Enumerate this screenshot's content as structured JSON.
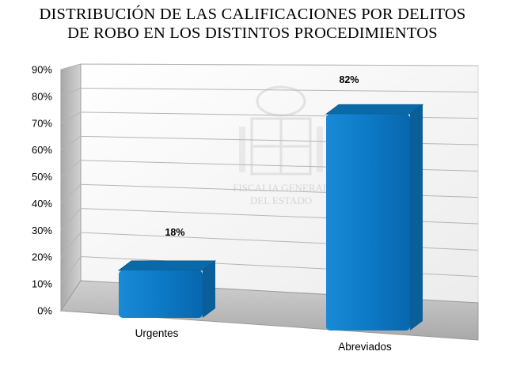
{
  "chart_data": {
    "type": "bar",
    "title_lines": [
      "DISTRIBUCIÓN DE LAS CALIFICACIONES POR DELITOS",
      "DE ROBO EN  LOS DISTINTOS PROCEDIMIENTOS"
    ],
    "categories": [
      "Urgentes",
      "Abreviados"
    ],
    "values": [
      18,
      82
    ],
    "value_labels": [
      "18%",
      "82%"
    ],
    "y_ticks": [
      "0%",
      "10%",
      "20%",
      "30%",
      "40%",
      "50%",
      "60%",
      "70%",
      "80%",
      "90%"
    ],
    "ylim": [
      0,
      90
    ],
    "grid": true,
    "bar_color": "#0a7ac4",
    "watermark_lines": [
      "FISCALIA GENERAL",
      "DEL ESTADO"
    ]
  }
}
